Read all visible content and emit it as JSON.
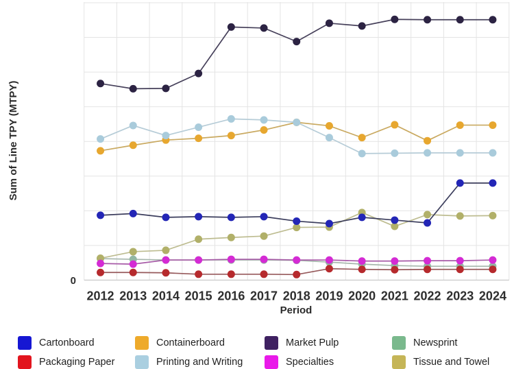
{
  "chart_data": {
    "type": "line",
    "title": "",
    "xlabel": "Period",
    "ylabel": "Sum of Line TPY (MTPY)",
    "y_tick_label": "0",
    "x": [
      "2012",
      "2013",
      "2014",
      "2015",
      "2016",
      "2017",
      "2018",
      "2019",
      "2020",
      "2021",
      "2022",
      "2023",
      "2024"
    ],
    "ylim": [
      0,
      8.1
    ],
    "grid": true,
    "legend_position": "bottom",
    "units_note": "y axis shows only 0; values estimated in gridline units (8 gridlines above zero)",
    "series": [
      {
        "name": "Newsprint",
        "color": "#93b7a3",
        "line": "#a6b6ac",
        "values": [
          0.62,
          0.6,
          0.58,
          0.58,
          0.58,
          0.58,
          0.57,
          0.52,
          0.46,
          0.42,
          0.4,
          0.4,
          0.4
        ]
      },
      {
        "name": "Tissue and Towel",
        "color": "#b1b069",
        "line": "#bdbc90",
        "values": [
          0.63,
          0.82,
          0.86,
          1.18,
          1.23,
          1.27,
          1.52,
          1.53,
          1.95,
          1.55,
          1.89,
          1.85,
          1.86
        ]
      },
      {
        "name": "Specialties",
        "color": "#d42bd4",
        "line": "#a75aa7",
        "values": [
          0.48,
          0.46,
          0.58,
          0.58,
          0.6,
          0.6,
          0.58,
          0.58,
          0.55,
          0.55,
          0.56,
          0.56,
          0.58
        ]
      },
      {
        "name": "Packaging Paper",
        "color": "#b62a2d",
        "line": "#96595b",
        "values": [
          0.22,
          0.22,
          0.21,
          0.17,
          0.17,
          0.17,
          0.16,
          0.33,
          0.31,
          0.3,
          0.31,
          0.31,
          0.31
        ]
      },
      {
        "name": "Containerboard",
        "color": "#e7a72f",
        "line": "#c9a960",
        "values": [
          3.73,
          3.89,
          4.04,
          4.09,
          4.17,
          4.33,
          4.55,
          4.45,
          4.11,
          4.48,
          4.02,
          4.47,
          4.47
        ]
      },
      {
        "name": "Printing and Writing",
        "color": "#a9cbdb",
        "line": "#b6ccd7",
        "values": [
          4.07,
          4.46,
          4.17,
          4.41,
          4.65,
          4.62,
          4.55,
          4.11,
          3.65,
          3.66,
          3.67,
          3.67,
          3.67
        ]
      },
      {
        "name": "Cartonboard",
        "color": "#2326b6",
        "line": "#3b3d5c",
        "values": [
          1.87,
          1.92,
          1.81,
          1.83,
          1.81,
          1.83,
          1.7,
          1.63,
          1.81,
          1.73,
          1.65,
          2.8,
          2.8
        ]
      },
      {
        "name": "Market Pulp",
        "color": "#2c2343",
        "line": "#46405a",
        "values": [
          5.67,
          5.52,
          5.53,
          5.96,
          7.3,
          7.27,
          6.88,
          7.41,
          7.33,
          7.52,
          7.51,
          7.51,
          7.51
        ]
      }
    ]
  },
  "legend": {
    "items": [
      {
        "label": "Cartonboard",
        "color": "#1617d3"
      },
      {
        "label": "Containerboard",
        "color": "#eeaa2b"
      },
      {
        "label": "Market Pulp",
        "color": "#3f2161"
      },
      {
        "label": "Newsprint",
        "color": "#7ab98d"
      },
      {
        "label": "Packaging Paper",
        "color": "#e2151e"
      },
      {
        "label": "Printing and Writing",
        "color": "#aacfe0"
      },
      {
        "label": "Specialties",
        "color": "#e91ae9"
      },
      {
        "label": "Tissue and Towel",
        "color": "#c5b557"
      }
    ]
  }
}
